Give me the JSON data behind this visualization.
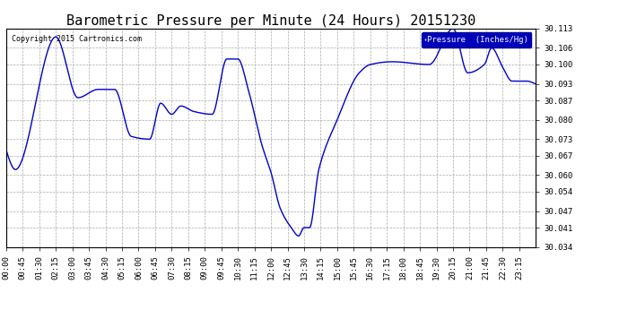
{
  "title": "Barometric Pressure per Minute (24 Hours) 20151230",
  "copyright": "Copyright 2015 Cartronics.com",
  "legend_label": "Pressure  (Inches/Hg)",
  "background_color": "#ffffff",
  "plot_background": "#ffffff",
  "line_color": "#0000cc",
  "line_width": 1.0,
  "ylim": [
    30.034,
    30.113
  ],
  "yticks": [
    30.034,
    30.041,
    30.047,
    30.054,
    30.06,
    30.067,
    30.073,
    30.08,
    30.087,
    30.093,
    30.1,
    30.106,
    30.113
  ],
  "xtick_labels": [
    "00:00",
    "00:45",
    "01:30",
    "02:15",
    "03:00",
    "03:45",
    "04:30",
    "05:15",
    "06:00",
    "06:45",
    "07:30",
    "08:15",
    "09:00",
    "09:45",
    "10:30",
    "11:15",
    "12:00",
    "12:45",
    "13:30",
    "14:15",
    "15:00",
    "15:45",
    "16:30",
    "17:15",
    "18:00",
    "18:45",
    "19:30",
    "20:15",
    "21:00",
    "21:45",
    "22:30",
    "23:15"
  ],
  "grid_color": "#aaaaaa",
  "grid_style": "--",
  "title_fontsize": 11,
  "tick_fontsize": 6.5,
  "ctrl_x": [
    0,
    25,
    135,
    195,
    250,
    295,
    340,
    390,
    420,
    450,
    475,
    510,
    560,
    600,
    630,
    660,
    695,
    720,
    745,
    775,
    795,
    810,
    825,
    850,
    900,
    960,
    990,
    1050,
    1150,
    1215,
    1255,
    1300,
    1320,
    1350,
    1375,
    1415,
    1439
  ],
  "ctrl_y": [
    30.069,
    30.062,
    30.11,
    30.088,
    30.091,
    30.091,
    30.074,
    30.073,
    30.086,
    30.082,
    30.085,
    30.083,
    30.082,
    30.102,
    30.102,
    30.09,
    30.071,
    30.061,
    30.048,
    30.041,
    30.038,
    30.041,
    30.041,
    30.062,
    30.08,
    30.097,
    30.1,
    30.101,
    30.1,
    30.113,
    30.097,
    30.1,
    30.106,
    30.099,
    30.094,
    30.094,
    30.093
  ]
}
